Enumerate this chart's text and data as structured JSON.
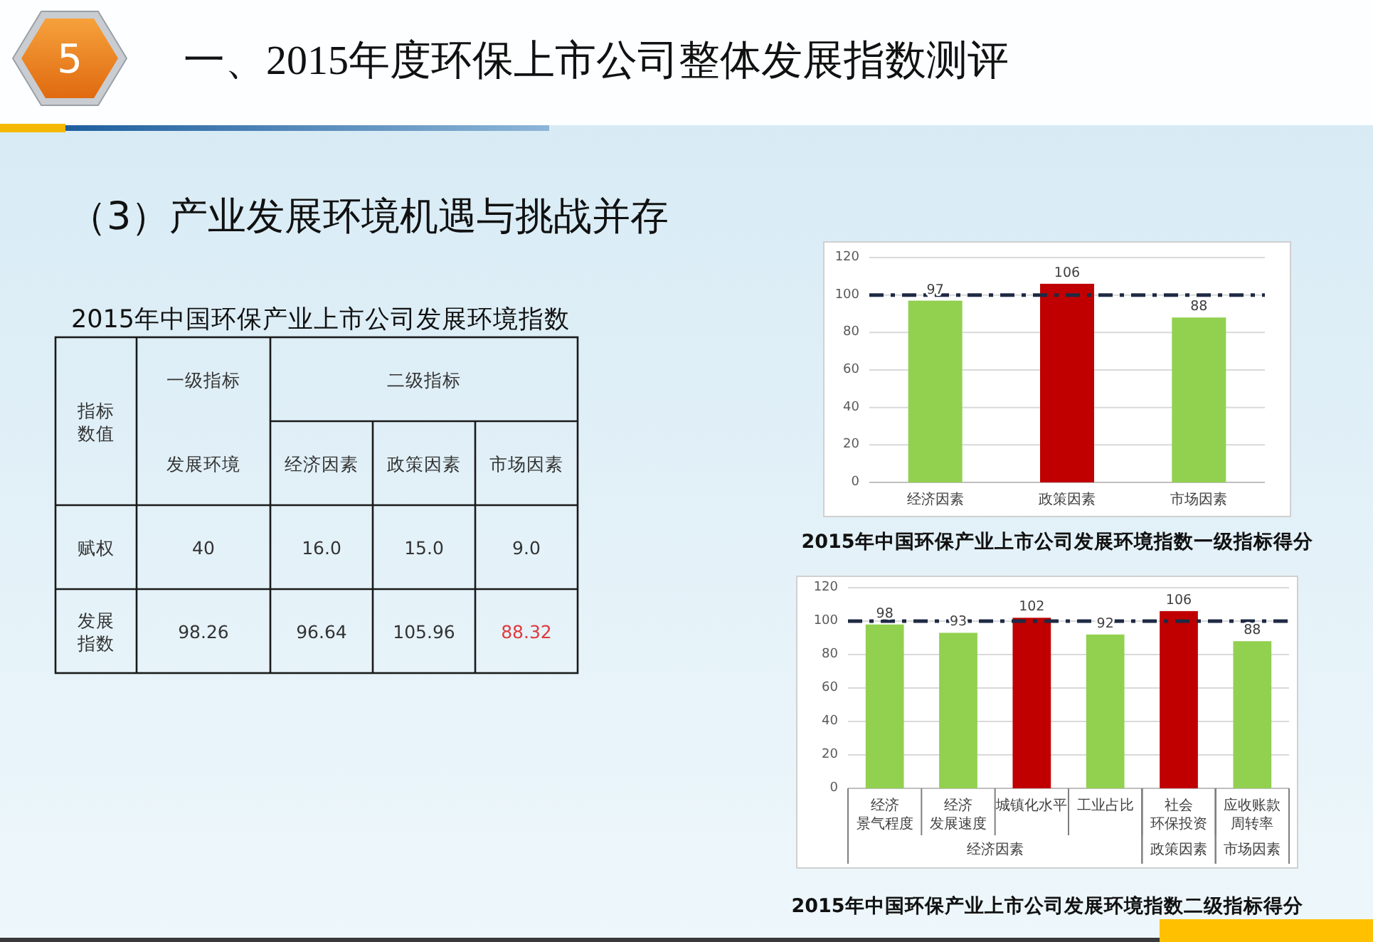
{
  "chart_data": [
    {
      "type": "other",
      "title": "一、2015年度环保上市公司整体发展指数测评",
      "subtitle": "（3）产业发展环境机遇与挑战并存",
      "annotations": [
        "5"
      ]
    },
    {
      "type": "other",
      "title": "2015年中国环保产业上市公司发展环境指数",
      "annotations": [
        "指标数值",
        "一级指标",
        "二级指标"
      ],
      "categories": [
        "发展环境",
        "经济因素",
        "政策因素",
        "市场因素"
      ],
      "series": [
        {
          "name": "赋权",
          "values": [
            40,
            16.0,
            15.0,
            9.0
          ],
          "value_labels": [
            "40",
            "16.0",
            "15.0",
            "9.0"
          ]
        },
        {
          "name": "发展指数",
          "values": [
            98.26,
            96.64,
            105.96,
            88.32
          ],
          "value_labels": [
            "98.26",
            "96.64",
            "105.96",
            "88.32"
          ],
          "colors": [
            "#333333",
            "#333333",
            "#333333",
            "#e0393e"
          ]
        }
      ]
    },
    {
      "type": "bar",
      "title": "2015年中国环保产业上市公司发展环境指数一级指标得分",
      "categories": [
        "经济因素",
        "政策因素",
        "市场因素"
      ],
      "values": [
        97,
        106,
        88
      ],
      "colors": [
        "#92d050",
        "#c00000",
        "#92d050"
      ],
      "ylim": [
        0,
        120
      ],
      "yticks": [
        0,
        20,
        40,
        60,
        80,
        100,
        120
      ],
      "grid": "y",
      "data_labels": true,
      "ref_lines": [
        {
          "axis": "y",
          "value": 100,
          "color": "#1f2a44",
          "line_style": "dashdot"
        }
      ]
    },
    {
      "type": "bar",
      "title": "2015年中国环保产业上市公司发展环境指数二级指标得分",
      "categories": [
        "经济景气程度",
        "经济发展速度",
        "城镇化水平",
        "工业占比",
        "社会环保投资",
        "应收账款周转率"
      ],
      "values": [
        98,
        93,
        102,
        92,
        106,
        88
      ],
      "colors": [
        "#92d050",
        "#92d050",
        "#c00000",
        "#92d050",
        "#c00000",
        "#92d050"
      ],
      "ylim": [
        0,
        120
      ],
      "yticks": [
        0,
        20,
        40,
        60,
        80,
        100,
        120
      ],
      "grid": "y",
      "data_labels": true,
      "ref_lines": [
        {
          "axis": "y",
          "value": 100,
          "color": "#1f2a44",
          "line_style": "dashdot"
        }
      ],
      "annotations": [
        "经济因素",
        "政策因素",
        "市场因素"
      ]
    }
  ]
}
